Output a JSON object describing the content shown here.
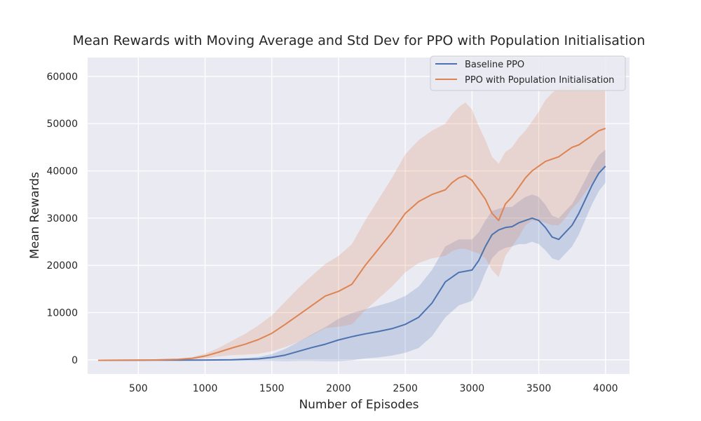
{
  "chart_data": {
    "type": "line",
    "title": "Mean Rewards with Moving Average and Std Dev for PPO with Population Initialisation",
    "xlabel": "Number of Episodes",
    "ylabel": "Mean Rewards",
    "xlim": [
      120,
      4180
    ],
    "ylim": [
      -3000,
      64000
    ],
    "xticks": [
      500,
      1000,
      1500,
      2000,
      2500,
      3000,
      3500,
      4000
    ],
    "yticks": [
      0,
      10000,
      20000,
      30000,
      40000,
      50000,
      60000
    ],
    "grid": true,
    "legend_position": "upper-right",
    "series": [
      {
        "name": "Baseline PPO",
        "color": "#4c72b0",
        "x": [
          200,
          600,
          1000,
          1200,
          1400,
          1500,
          1600,
          1700,
          1800,
          1900,
          2000,
          2100,
          2200,
          2300,
          2400,
          2500,
          2600,
          2700,
          2800,
          2900,
          3000,
          3050,
          3100,
          3150,
          3200,
          3250,
          3300,
          3350,
          3400,
          3450,
          3500,
          3550,
          3600,
          3650,
          3700,
          3750,
          3800,
          3850,
          3900,
          3950,
          4000
        ],
        "mean": [
          -100,
          -80,
          -50,
          0,
          200,
          500,
          1000,
          1800,
          2600,
          3300,
          4200,
          4900,
          5500,
          6000,
          6600,
          7500,
          9000,
          12000,
          16500,
          18500,
          19000,
          21000,
          24000,
          26500,
          27500,
          28000,
          28200,
          29000,
          29500,
          30000,
          29500,
          28000,
          26000,
          25500,
          27000,
          28500,
          31000,
          34000,
          37000,
          39500,
          41000
        ],
        "std": [
          50,
          60,
          100,
          150,
          400,
          700,
          1300,
          2000,
          2800,
          3600,
          4500,
          5000,
          5200,
          5500,
          5700,
          6000,
          6500,
          7000,
          7500,
          7000,
          6500,
          6000,
          5500,
          5000,
          4500,
          4300,
          4200,
          4500,
          5000,
          5000,
          5000,
          4800,
          4500,
          4500,
          4500,
          4500,
          4500,
          4200,
          4000,
          3800,
          3500
        ]
      },
      {
        "name": "PPO with Population Initialisation",
        "color": "#dd8452",
        "x": [
          200,
          600,
          800,
          900,
          1000,
          1100,
          1200,
          1300,
          1400,
          1500,
          1600,
          1700,
          1800,
          1900,
          2000,
          2100,
          2200,
          2300,
          2400,
          2500,
          2600,
          2700,
          2800,
          2850,
          2900,
          2950,
          3000,
          3050,
          3100,
          3150,
          3200,
          3250,
          3300,
          3350,
          3400,
          3450,
          3500,
          3550,
          3600,
          3650,
          3700,
          3750,
          3800,
          3850,
          3900,
          3950,
          4000
        ],
        "mean": [
          -100,
          -50,
          100,
          300,
          800,
          1600,
          2500,
          3300,
          4300,
          5600,
          7500,
          9500,
          11500,
          13500,
          14500,
          16000,
          20000,
          23500,
          27000,
          31000,
          33500,
          35000,
          36000,
          37500,
          38500,
          39000,
          38000,
          36000,
          34000,
          31000,
          29500,
          33000,
          34500,
          36500,
          38500,
          40000,
          41000,
          42000,
          42500,
          43000,
          44000,
          45000,
          45500,
          46500,
          47500,
          48500,
          49000
        ],
        "std": [
          50,
          60,
          150,
          250,
          500,
          900,
          1500,
          2200,
          3000,
          3800,
          4800,
          5700,
          6300,
          6800,
          7500,
          8500,
          9500,
          10500,
          11500,
          12500,
          13000,
          13500,
          14000,
          14500,
          15000,
          15500,
          15000,
          13500,
          12500,
          12000,
          12000,
          11000,
          10500,
          10500,
          10000,
          10500,
          11500,
          13000,
          14000,
          14500,
          14000,
          13000,
          12000,
          11000,
          10000,
          9000,
          8000
        ]
      }
    ]
  }
}
